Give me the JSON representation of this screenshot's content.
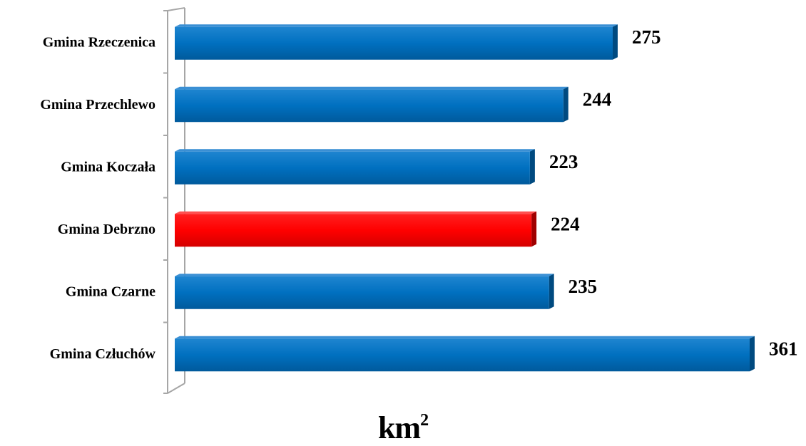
{
  "chart_data": {
    "type": "bar",
    "orientation": "horizontal",
    "categories": [
      "Gmina Rzeczenica",
      "Gmina Przechlewo",
      "Gmina Koczała",
      "Gmina Debrzno",
      "Gmina Czarne",
      "Gmina Człuchów"
    ],
    "values": [
      275,
      244,
      223,
      224,
      235,
      361
    ],
    "bar_colors": [
      "#0070C0",
      "#0070C0",
      "#0070C0",
      "#FF0000",
      "#0070C0",
      "#0070C0"
    ],
    "xlim": [
      0,
      361
    ],
    "data_labels": true,
    "grid": false,
    "legend": "none"
  },
  "unit": {
    "base": "km",
    "superscript": "2"
  }
}
